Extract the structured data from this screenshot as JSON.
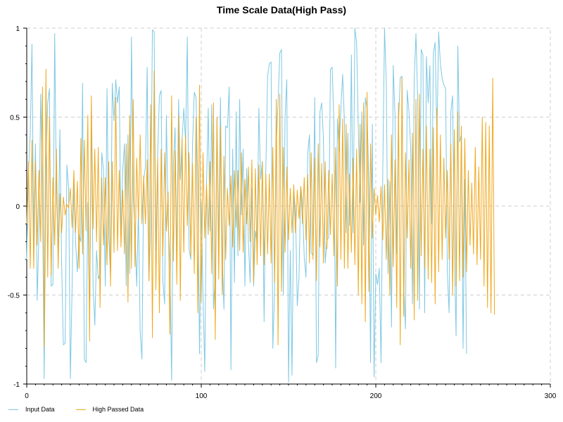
{
  "chart_data": {
    "type": "line",
    "title": "Time Scale Data(High Pass)",
    "xlabel": "",
    "ylabel": "",
    "xlim": [
      0,
      300
    ],
    "ylim": [
      -1,
      1
    ],
    "x_ticks": [
      0,
      100,
      200,
      300
    ],
    "x_tick_labels": [
      "0",
      "100",
      "200",
      "300"
    ],
    "y_ticks": [
      1,
      0.5,
      0,
      -0.5,
      -1
    ],
    "y_tick_labels": [
      "1",
      "0.5",
      "0",
      "-0.5",
      "-1"
    ],
    "grid": true,
    "legend_position": "bottom-left",
    "x_start": 0,
    "x_step": 1,
    "series": [
      {
        "name": "Input Data",
        "color": "#7ec8e3",
        "values": [
          -0.3,
          0.2,
          0.4,
          0.91,
          -0.2,
          0.35,
          -0.53,
          -0.15,
          0.63,
          0.1,
          -0.97,
          0.2,
          0.58,
          0.66,
          -0.45,
          -0.44,
          0.97,
          0.07,
          -0.25,
          0.43,
          -0.33,
          -0.78,
          -0.77,
          0.23,
          0.1,
          -0.97,
          -0.45,
          0.14,
          -0.21,
          -0.37,
          -0.16,
          -0.2,
          0.69,
          -0.86,
          -0.88,
          0.02,
          -0.64,
          0.53,
          -0.45,
          -0.67,
          -0.25,
          -0.41,
          -0.38,
          0.3,
          0.2,
          -0.45,
          0.66,
          -0.18,
          -0.39,
          0.69,
          0.48,
          0.71,
          0.58,
          0.67,
          -0.18,
          0.2,
          0.35,
          -0.45,
          0.4,
          -0.38,
          0.95,
          0.06,
          -0.14,
          -0.45,
          -0.02,
          -0.71,
          -0.86,
          0.15,
          0.22,
          0.78,
          -0.42,
          -0.12,
          0.99,
          0.98,
          -0.25,
          0.28,
          0.62,
          0.65,
          -0.42,
          -0.55,
          0.51,
          -0.09,
          -0.3,
          -0.98,
          0.23,
          0.44,
          -0.3,
          0.6,
          0.15,
          0.37,
          0.55,
          0.36,
          0.95,
          -0.24,
          -0.3,
          0.35,
          0.64,
          0.61,
          0.13,
          -0.83,
          0.02,
          -0.5,
          -0.93,
          0.12,
          0.55,
          -0.14,
          0.57,
          -0.58,
          -0.4,
          0.5,
          -0.23,
          0.61,
          -0.3,
          -0.58,
          0.45,
          0.44,
          0.67,
          -0.92,
          0.32,
          -0.43,
          0.53,
          -0.28,
          0.6,
          -0.05,
          0.32,
          -0.45,
          0.21,
          -0.2,
          -0.43,
          0.1,
          -0.45,
          -0.14,
          -0.21,
          0.55,
          0.15,
          0.25,
          -0.65,
          0.21,
          0.73,
          0.8,
          0.81,
          -0.8,
          -0.47,
          0.35,
          0.58,
          0.86,
          0.88,
          -0.5,
          0.5,
          0.71,
          -0.99,
          -0.25,
          -0.95,
          0.08,
          -0.02,
          -0.56,
          -0.4,
          0.11,
          0.02,
          -0.29,
          -0.4,
          0.3,
          0.4,
          -0.26,
          -0.28,
          0.61,
          -0.88,
          -0.84,
          0.53,
          0.58,
          0.38,
          -0.32,
          -0.19,
          -0.18,
          0.77,
          0.78,
          0.47,
          -0.91,
          0.49,
          0.31,
          0.55,
          0.74,
          0.48,
          -0.15,
          0.41,
          -0.11,
          0.85,
          -0.15,
          1.0,
          0.92,
          0.43,
          0.02,
          0.53,
          -0.22,
          0.61,
          0.55,
          0.11,
          -0.88,
          0.46,
          -0.96,
          -0.38,
          -0.44,
          -0.35,
          -0.88,
          0.2,
          1.0,
          0.7,
          -0.38,
          0.14,
          -0.68,
          0.79,
          0.51,
          -0.27,
          0.46,
          0.72,
          0.73,
          -0.45,
          -0.69,
          0.65,
          0.53,
          0.32,
          -0.55,
          0.71,
          0.97,
          0.6,
          -0.58,
          0.88,
          0.85,
          -0.6,
          0.84,
          0.58,
          0.79,
          -0.1,
          0.86,
          0.92,
          0.37,
          0.98,
          0.8,
          0.72,
          0.68,
          0.66,
          -0.38,
          -0.6,
          0.53,
          0.62,
          -0.28,
          -0.73,
          0.9,
          0.36,
          0.4,
          -0.8,
          0.15,
          -0.83
        ]
      },
      {
        "name": "High Passed Data",
        "color": "#f0a81e",
        "values": [
          -0.1,
          0.25,
          -0.35,
          0.37,
          -0.35,
          0.25,
          -0.22,
          0.2,
          -0.2,
          0.67,
          -0.79,
          0.77,
          -0.4,
          0.5,
          -0.39,
          0.16,
          -0.22,
          0.32,
          -0.35,
          0.07,
          -0.15,
          0.05,
          -0.05,
          0.01,
          -0.01,
          0.1,
          -0.12,
          0.2,
          -0.15,
          0.14,
          -0.35,
          0.38,
          -0.27,
          0.37,
          -0.14,
          0.51,
          -0.76,
          0.62,
          -0.13,
          0.32,
          -0.2,
          0.33,
          -0.57,
          0.16,
          -0.22,
          0.16,
          -0.33,
          0.25,
          -0.45,
          0.25,
          -0.26,
          0.61,
          -0.25,
          0.2,
          -0.23,
          0.09,
          -0.27,
          0.35,
          -0.54,
          0.51,
          -0.35,
          0.6,
          -0.34,
          0.27,
          -0.07,
          0.4,
          -0.1,
          0.17,
          -0.1,
          0.26,
          -0.42,
          0.57,
          -0.74,
          0.76,
          -0.47,
          0.27,
          -0.6,
          0.32,
          -0.28,
          0.3,
          -0.14,
          0.08,
          -0.72,
          0.62,
          -0.31,
          0.31,
          -0.44,
          0.51,
          -0.53,
          0.38,
          -0.26,
          0.4,
          -0.11,
          0.3,
          -0.28,
          0.24,
          -0.38,
          0.5,
          -0.6,
          0.68,
          -0.54,
          0.3,
          -0.18,
          0.12,
          -0.16,
          0.25,
          -0.38,
          0.58,
          -0.75,
          0.5,
          -0.41,
          0.45,
          -0.5,
          0.28,
          -0.3,
          0.1,
          -0.11,
          0.17,
          -0.23,
          0.2,
          -0.12,
          0.2,
          -0.25,
          0.3,
          -0.26,
          0.15,
          -0.1,
          0.22,
          -0.2,
          0.26,
          -0.43,
          0.21,
          -0.33,
          0.23,
          -0.28,
          0.25,
          -0.33,
          0.18,
          -0.27,
          0.18,
          -0.32,
          0.33,
          -0.43,
          0.6,
          -0.78,
          0.63,
          -0.48,
          0.33,
          -0.26,
          0.22,
          -0.19,
          0.1,
          -0.15,
          0.12,
          -0.15,
          0.09,
          -0.07,
          0.11,
          -0.1,
          0.16,
          -0.19,
          0.18,
          -0.32,
          0.3,
          -0.3,
          0.27,
          -0.42,
          0.35,
          -0.23,
          0.24,
          -0.32,
          0.25,
          -0.24,
          0.2,
          -0.16,
          0.18,
          -0.28,
          0.33,
          -0.45,
          0.57,
          -0.3,
          0.49,
          -0.35,
          0.46,
          -0.35,
          0.18,
          -0.26,
          0.27,
          -0.33,
          0.32,
          -0.5,
          0.46,
          -0.55,
          0.58,
          -0.65,
          0.64,
          -0.48,
          0.35,
          -0.18,
          0.1,
          -0.05,
          0.06,
          -0.09,
          0.11,
          -0.19,
          0.12,
          -0.3,
          0.15,
          -0.5,
          0.4,
          -0.34,
          0.26,
          -0.57,
          0.58,
          -0.78,
          0.72,
          -0.62,
          0.3,
          -0.18,
          0.26,
          -0.35,
          0.41,
          -0.64,
          0.6,
          -0.53,
          0.63,
          -0.28,
          0.32,
          -0.35,
          0.45,
          -0.41,
          0.32,
          -0.43,
          0.44,
          -0.55,
          0.55,
          -0.37,
          0.4,
          -0.3,
          0.27,
          -0.18,
          0.2,
          -0.3,
          0.35,
          -0.5,
          0.43,
          -0.45,
          0.53,
          -0.42,
          0.45,
          -0.4,
          0.38,
          -0.37,
          0.2,
          -0.22,
          0.13,
          -0.27,
          0.33,
          -0.33,
          0.22,
          -0.3,
          0.5,
          -0.45,
          0.47,
          -0.57,
          0.45,
          -0.6,
          0.72,
          -0.61
        ]
      }
    ]
  }
}
